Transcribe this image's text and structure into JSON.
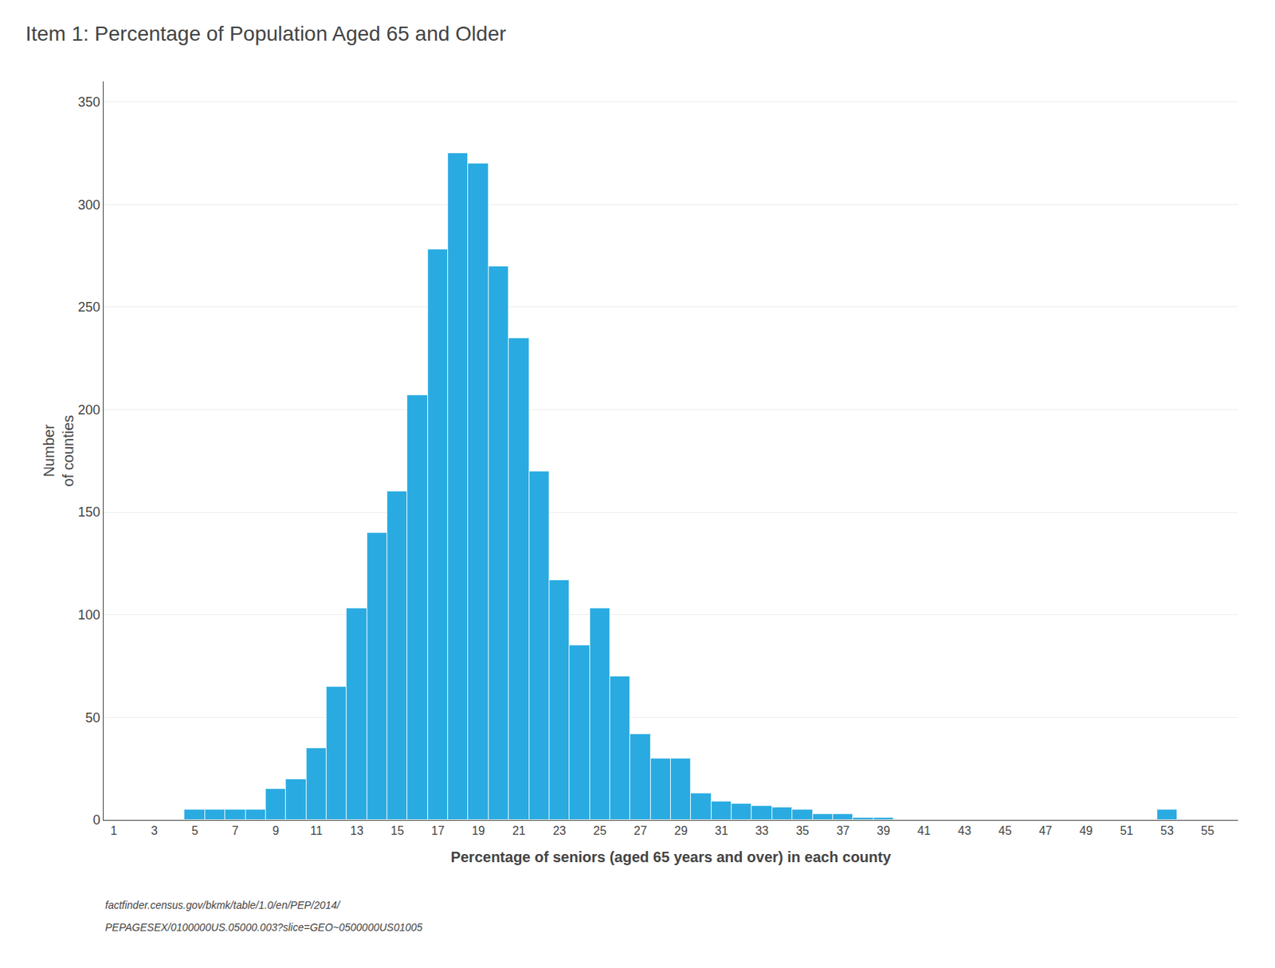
{
  "chart_data": {
    "type": "bar",
    "title": "Item 1: Percentage of Population Aged 65 and Older",
    "y_label": "Number\nof counties",
    "x_label": "Percentage of seniors (aged 65 years and over) in each county",
    "annotations": [
      "factfinder.census.gov/bkmk/table/1.0/en/PEP/2014/",
      "PEPAGESEX/0100000US.05000.003?slice=GEO~0500000US01005"
    ],
    "x": [
      2,
      3,
      4,
      5,
      6,
      7,
      8,
      9,
      10,
      11,
      12,
      13,
      14,
      15,
      16,
      17,
      18,
      19,
      20,
      21,
      22,
      23,
      24,
      25,
      26,
      27,
      28,
      29,
      30,
      31,
      32,
      33,
      34,
      35,
      36,
      37,
      38,
      39,
      40,
      41,
      42,
      43,
      44,
      45,
      46,
      47,
      48,
      49,
      50,
      51,
      52,
      53,
      54,
      55
    ],
    "values": [
      0,
      0,
      0,
      5,
      5,
      5,
      5,
      15,
      20,
      35,
      65,
      103,
      140,
      160,
      207,
      278,
      325,
      320,
      270,
      235,
      170,
      117,
      85,
      103,
      70,
      42,
      30,
      30,
      13,
      9,
      8,
      7,
      6,
      5,
      3,
      3,
      1,
      1,
      0,
      0,
      0,
      0,
      0,
      0,
      0,
      0,
      0,
      0,
      0,
      0,
      0,
      5,
      0,
      0
    ],
    "color": "#29ABE2",
    "xlim": [
      0.5,
      56.5
    ],
    "xticks": [
      1,
      3,
      5,
      7,
      9,
      11,
      13,
      15,
      17,
      19,
      21,
      23,
      25,
      27,
      29,
      31,
      33,
      35,
      37,
      39,
      41,
      43,
      45,
      47,
      49,
      51,
      53,
      55
    ],
    "ylim": [
      0,
      360
    ],
    "yticks": [
      0,
      50,
      100,
      150,
      200,
      250,
      300,
      350
    ],
    "grid": true
  }
}
